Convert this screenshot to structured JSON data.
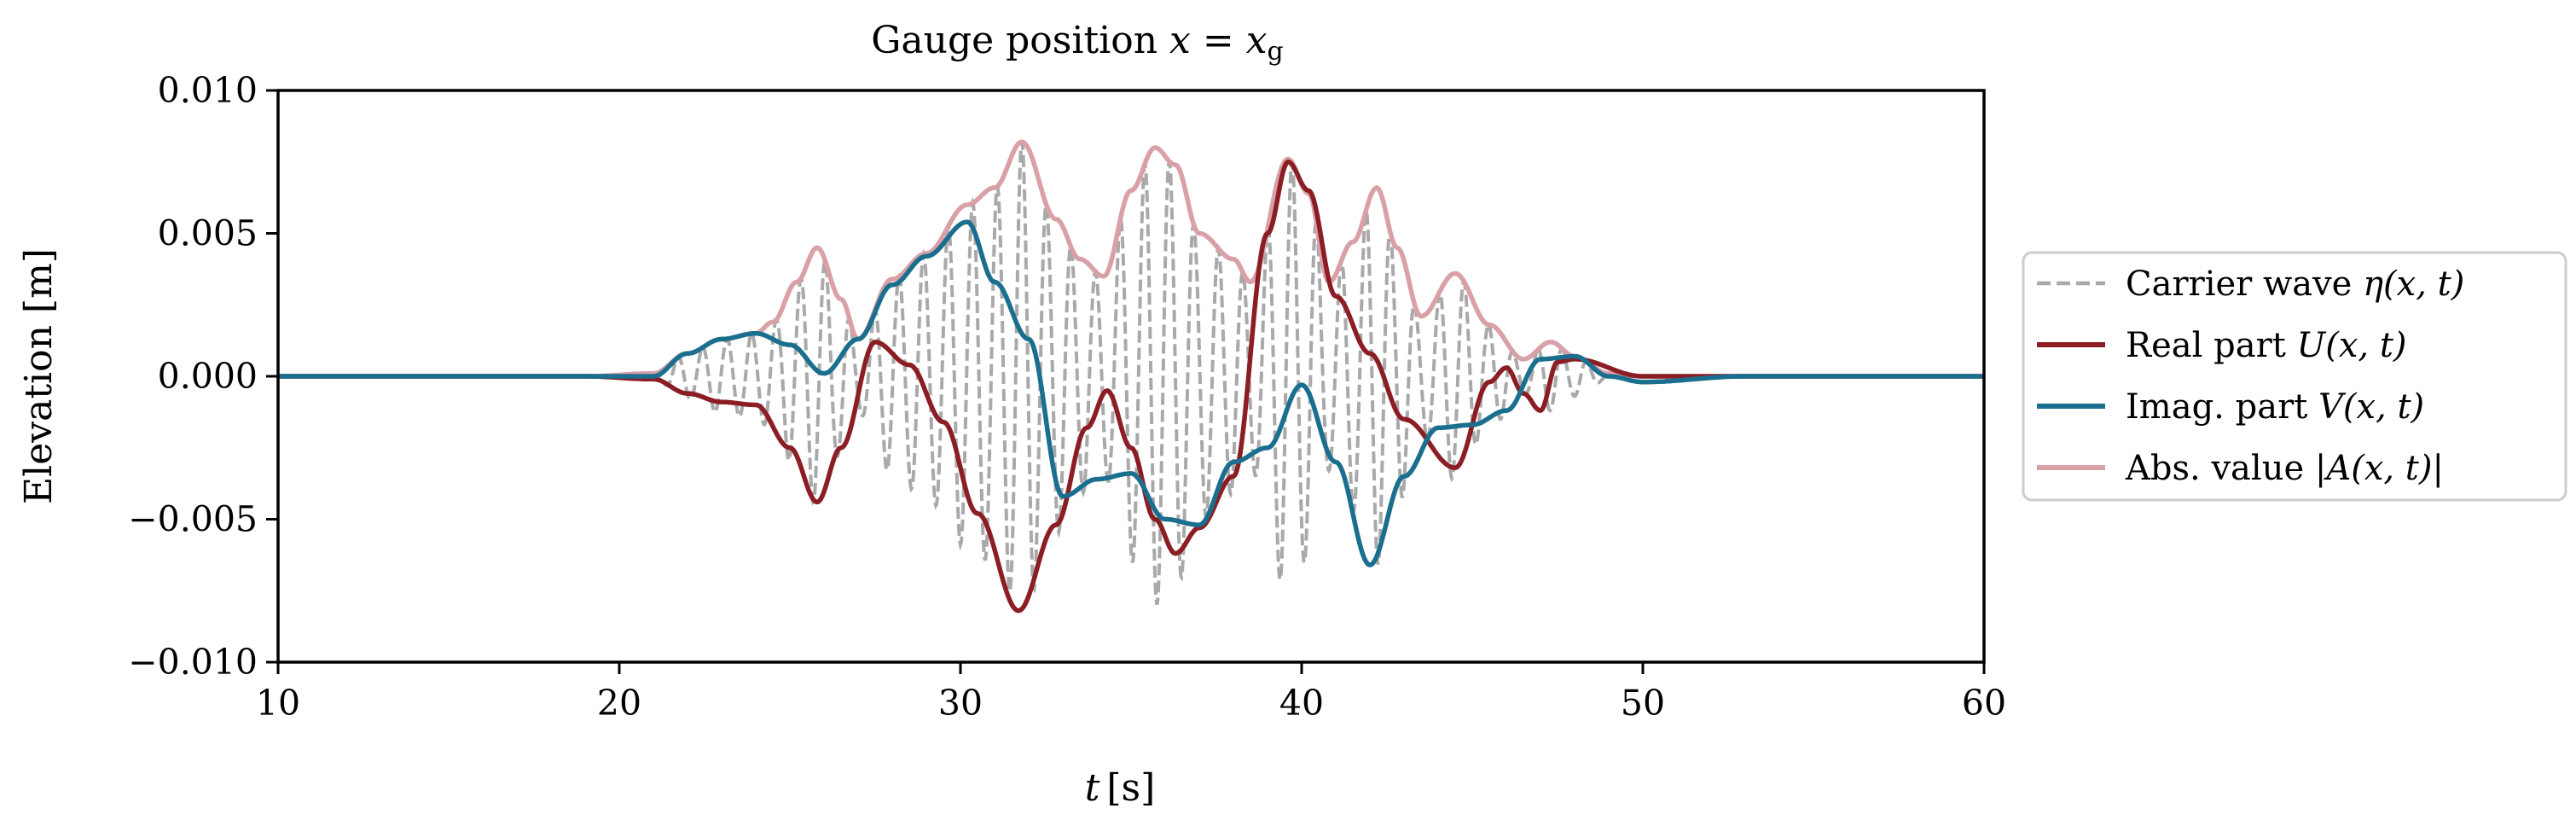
{
  "chart_data": {
    "type": "line",
    "title": "Gauge position x = xg",
    "title_parts": {
      "prefix": "Gauge position ",
      "var": "x",
      "eq": " = ",
      "var2": "x",
      "sub": "g"
    },
    "xlabel": "t [s]",
    "xlabel_parts": {
      "var": "t",
      "unit": "[s]"
    },
    "ylabel": "Elevation [m]",
    "xlim": [
      10,
      60
    ],
    "ylim": [
      -0.01,
      0.01
    ],
    "xticks": [
      10,
      20,
      30,
      40,
      50,
      60
    ],
    "xtick_labels": [
      "10",
      "20",
      "30",
      "40",
      "50",
      "60"
    ],
    "yticks": [
      -0.01,
      -0.005,
      0,
      0.005,
      0.01
    ],
    "ytick_labels": [
      "−0.010",
      "−0.005",
      "0.000",
      "0.005",
      "0.010"
    ],
    "grid": false,
    "legend_position": "outside-right",
    "legend": [
      {
        "label": "Carrier wave η(x, t)",
        "text": "Carrier wave ",
        "math": "η(x, t)",
        "color": "#a9a9a9",
        "style": "dashed"
      },
      {
        "label": "Real part U(x, t)",
        "text": "Real part ",
        "math": "U(x, t)",
        "color": "#8b1e24",
        "style": "solid"
      },
      {
        "label": "Imag. part V(x, t)",
        "text": "Imag. part ",
        "math": "V(x, t)",
        "color": "#1a6e8e",
        "style": "solid"
      },
      {
        "label": "Abs. value |A(x, t)|",
        "text": "Abs. value ",
        "math": "|A(x, t)|",
        "color": "#d9a0a8",
        "style": "solid"
      }
    ],
    "series": [
      {
        "name": "Real part U(x, t)",
        "color": "#8b1e24",
        "x": [
          10,
          13,
          16,
          19,
          21,
          22,
          23,
          24,
          25,
          25.8,
          26.5,
          27.5,
          28.5,
          29.5,
          30.5,
          31.7,
          32.8,
          33.7,
          34.3,
          35,
          35.7,
          36.3,
          37,
          38,
          39,
          39.6,
          40.2,
          41,
          42,
          43,
          44.5,
          45.5,
          46,
          46.5,
          47,
          47.5,
          48,
          50,
          53,
          56,
          60
        ],
        "values": [
          0,
          0,
          0,
          0,
          -0.0001,
          -0.0006,
          -0.0009,
          -0.001,
          -0.0025,
          -0.0044,
          -0.0025,
          0.0012,
          0.0004,
          -0.0016,
          -0.0048,
          -0.0082,
          -0.0052,
          -0.0018,
          -0.0005,
          -0.0025,
          -0.005,
          -0.0062,
          -0.0053,
          -0.0035,
          0.005,
          0.0075,
          0.0065,
          0.0028,
          0.0008,
          -0.0015,
          -0.0032,
          -0.0002,
          0.0003,
          -0.0006,
          -0.0012,
          0.0005,
          0.0006,
          0,
          0,
          0,
          0
        ]
      },
      {
        "name": "Imag. part V(x, t)",
        "color": "#1a6e8e",
        "x": [
          10,
          13,
          16,
          19,
          21,
          22,
          23,
          24,
          25,
          26,
          27,
          28,
          29,
          30.2,
          31,
          32,
          33,
          34,
          35,
          36,
          37,
          38,
          39,
          40,
          41,
          42,
          43,
          44,
          45,
          46,
          47,
          48,
          49,
          50,
          53,
          56,
          60
        ],
        "values": [
          0,
          0,
          0,
          0,
          0,
          0.0008,
          0.0013,
          0.0015,
          0.0011,
          0.0001,
          0.0013,
          0.0032,
          0.0042,
          0.0054,
          0.0033,
          0.0013,
          -0.0042,
          -0.0036,
          -0.0034,
          -0.005,
          -0.0052,
          -0.003,
          -0.0025,
          -0.0003,
          -0.003,
          -0.0066,
          -0.0035,
          -0.0018,
          -0.0017,
          -0.0012,
          0.0006,
          0.0007,
          0,
          -0.0002,
          0,
          0,
          0
        ]
      },
      {
        "name": "Abs. value |A(x, t)|",
        "color": "#d9a0a8",
        "x": [
          10,
          13,
          16,
          19,
          21,
          22,
          23,
          24,
          24.5,
          25.2,
          25.8,
          26.5,
          27,
          28,
          29,
          30.2,
          31,
          31.8,
          32.8,
          33.5,
          34.2,
          35,
          35.7,
          36.3,
          37,
          38,
          38.5,
          39.6,
          40.2,
          40.8,
          41.5,
          42.2,
          42.8,
          43.5,
          44.5,
          45.5,
          46.5,
          47.3,
          48,
          49,
          50,
          53,
          56,
          60
        ],
        "values": [
          0,
          0,
          0,
          0,
          0.0001,
          0.0008,
          0.0013,
          0.0015,
          0.0019,
          0.0033,
          0.0045,
          0.0027,
          0.0013,
          0.0034,
          0.0043,
          0.006,
          0.0066,
          0.0082,
          0.0055,
          0.0041,
          0.0035,
          0.0065,
          0.008,
          0.0074,
          0.005,
          0.0041,
          0.0033,
          0.0076,
          0.0064,
          0.0033,
          0.0047,
          0.0066,
          0.0045,
          0.0021,
          0.0036,
          0.0018,
          0.0006,
          0.0012,
          0.0007,
          0.0001,
          0,
          0,
          0,
          0
        ]
      }
    ],
    "carrier": {
      "name": "Carrier wave η(x, t)",
      "color": "#a9a9a9",
      "period_s": 0.72
    }
  }
}
